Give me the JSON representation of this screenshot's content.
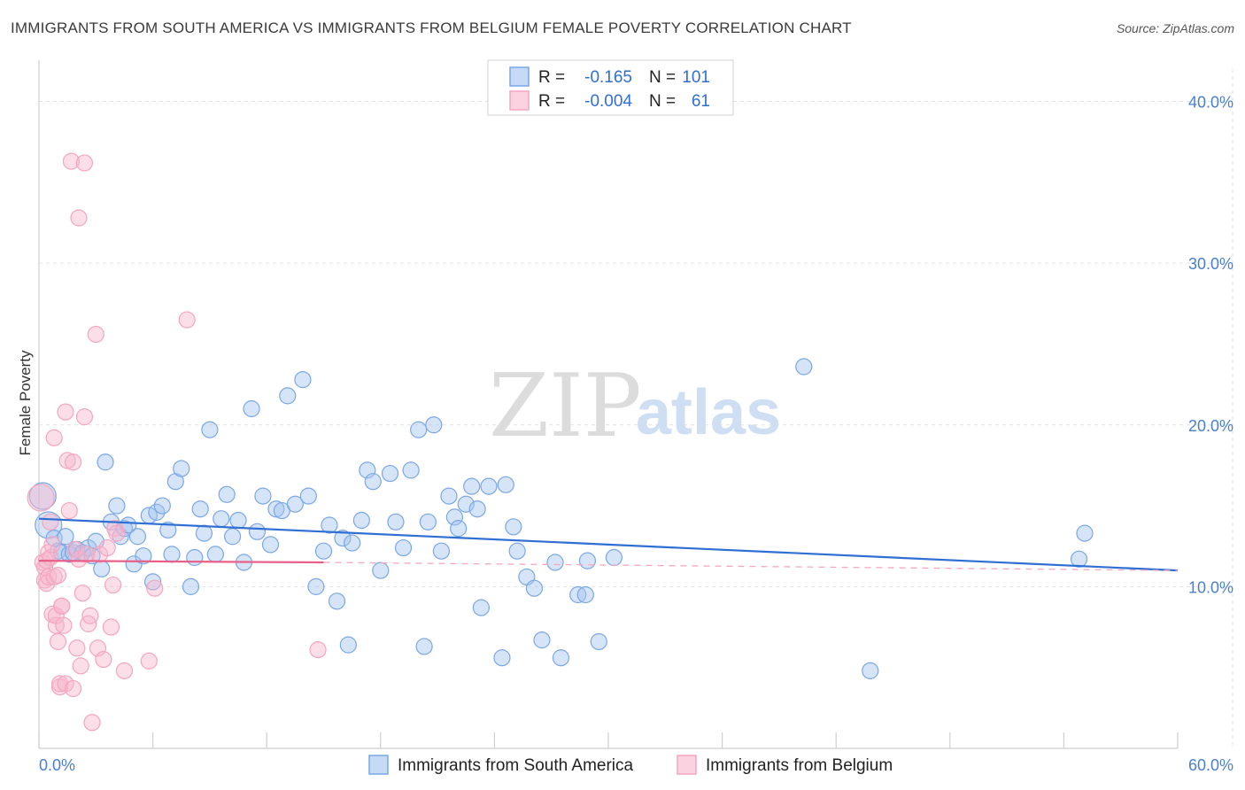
{
  "title": "IMMIGRANTS FROM SOUTH AMERICA VS IMMIGRANTS FROM BELGIUM FEMALE POVERTY CORRELATION CHART",
  "source": "Source: ZipAtlas.com",
  "watermark": {
    "part1": "ZIP",
    "part2": "atlas"
  },
  "legend": {
    "rows": [
      {
        "r_label": "R =",
        "r_value": "-0.165",
        "n_label": "N =",
        "n_value": "101"
      },
      {
        "r_label": "R =",
        "r_value": "-0.004",
        "n_label": "N =",
        "n_value": "61"
      }
    ]
  },
  "chart_data": {
    "type": "scatter",
    "title": "IMMIGRANTS FROM SOUTH AMERICA VS IMMIGRANTS FROM BELGIUM FEMALE POVERTY CORRELATION CHART",
    "ylabel": "Female Poverty",
    "xlabel": "",
    "xlim": [
      0,
      60
    ],
    "ylim": [
      0,
      42
    ],
    "x_tick_labels": [
      "0.0%",
      "60.0%"
    ],
    "y_ticks": [
      10,
      20,
      30,
      40
    ],
    "y_tick_labels": [
      "10.0%",
      "20.0%",
      "30.0%",
      "40.0%"
    ],
    "grid": "horizontal dashed",
    "legend_position": "top-center",
    "series": [
      {
        "name": "Immigrants from South America",
        "color": "#7aa7e6",
        "line_color": "#2f6fd3",
        "R": -0.165,
        "N": 101,
        "trend": {
          "x": [
            0,
            60
          ],
          "y": [
            14.2,
            11.0
          ]
        },
        "points": [
          [
            0.2,
            15.6
          ],
          [
            0.5,
            13.8
          ],
          [
            0.8,
            13.0
          ],
          [
            1.0,
            12.2
          ],
          [
            1.2,
            12.1
          ],
          [
            1.4,
            13.1
          ],
          [
            1.6,
            12.0
          ],
          [
            1.8,
            12.1
          ],
          [
            2.0,
            12.3
          ],
          [
            2.3,
            12.1
          ],
          [
            2.6,
            12.4
          ],
          [
            2.8,
            11.9
          ],
          [
            3.0,
            12.8
          ],
          [
            3.3,
            11.1
          ],
          [
            3.5,
            17.7
          ],
          [
            3.8,
            14.0
          ],
          [
            4.1,
            15.0
          ],
          [
            4.3,
            13.1
          ],
          [
            4.5,
            13.6
          ],
          [
            4.7,
            13.8
          ],
          [
            5.0,
            11.4
          ],
          [
            5.2,
            13.1
          ],
          [
            5.5,
            11.9
          ],
          [
            5.8,
            14.4
          ],
          [
            6.0,
            10.3
          ],
          [
            6.2,
            14.6
          ],
          [
            6.5,
            15.0
          ],
          [
            6.8,
            13.5
          ],
          [
            7.0,
            12.0
          ],
          [
            7.2,
            16.5
          ],
          [
            7.5,
            17.3
          ],
          [
            8.0,
            10.0
          ],
          [
            8.2,
            11.8
          ],
          [
            8.5,
            14.8
          ],
          [
            8.7,
            13.3
          ],
          [
            9.0,
            19.7
          ],
          [
            9.3,
            12.0
          ],
          [
            9.6,
            14.2
          ],
          [
            9.9,
            15.7
          ],
          [
            10.2,
            13.1
          ],
          [
            10.5,
            14.1
          ],
          [
            10.8,
            11.5
          ],
          [
            11.2,
            21.0
          ],
          [
            11.5,
            13.4
          ],
          [
            11.8,
            15.6
          ],
          [
            12.2,
            12.6
          ],
          [
            12.5,
            14.8
          ],
          [
            12.8,
            14.7
          ],
          [
            13.1,
            21.8
          ],
          [
            13.5,
            15.1
          ],
          [
            13.9,
            22.8
          ],
          [
            14.2,
            15.6
          ],
          [
            14.6,
            10.0
          ],
          [
            15.0,
            12.2
          ],
          [
            15.3,
            13.8
          ],
          [
            15.7,
            9.1
          ],
          [
            16.0,
            13.0
          ],
          [
            16.3,
            6.4
          ],
          [
            16.5,
            12.7
          ],
          [
            17.0,
            14.1
          ],
          [
            17.3,
            17.2
          ],
          [
            17.6,
            16.5
          ],
          [
            18.0,
            11.0
          ],
          [
            18.5,
            17.0
          ],
          [
            18.8,
            14.0
          ],
          [
            19.2,
            12.4
          ],
          [
            19.6,
            17.2
          ],
          [
            20.0,
            19.7
          ],
          [
            20.3,
            6.3
          ],
          [
            20.5,
            14.0
          ],
          [
            20.8,
            20.0
          ],
          [
            21.2,
            12.2
          ],
          [
            21.6,
            15.6
          ],
          [
            21.9,
            14.3
          ],
          [
            22.1,
            13.6
          ],
          [
            22.5,
            15.1
          ],
          [
            22.8,
            16.2
          ],
          [
            23.1,
            14.8
          ],
          [
            23.3,
            8.7
          ],
          [
            23.7,
            16.2
          ],
          [
            24.4,
            5.6
          ],
          [
            24.6,
            16.3
          ],
          [
            25.0,
            13.7
          ],
          [
            25.2,
            12.2
          ],
          [
            25.7,
            10.6
          ],
          [
            26.1,
            9.9
          ],
          [
            26.5,
            6.7
          ],
          [
            27.2,
            11.5
          ],
          [
            27.5,
            5.6
          ],
          [
            28.4,
            9.5
          ],
          [
            28.8,
            9.5
          ],
          [
            28.9,
            11.6
          ],
          [
            29.5,
            6.6
          ],
          [
            30.3,
            11.8
          ],
          [
            40.3,
            23.6
          ],
          [
            43.8,
            4.8
          ],
          [
            54.8,
            11.7
          ],
          [
            55.1,
            13.3
          ]
        ]
      },
      {
        "name": "Immigrants from Belgium",
        "color": "#f4a6bf",
        "line_color": "#e8608a",
        "R": -0.004,
        "N": 61,
        "trend": {
          "x": [
            0,
            15
          ],
          "y": [
            11.6,
            11.5
          ]
        },
        "dashed_extension": {
          "x": [
            15,
            60
          ],
          "y": [
            11.5,
            11.0
          ]
        },
        "points": [
          [
            0.1,
            15.5
          ],
          [
            0.2,
            11.5
          ],
          [
            0.3,
            10.4
          ],
          [
            0.3,
            11.2
          ],
          [
            0.4,
            10.2
          ],
          [
            0.4,
            11.6
          ],
          [
            0.5,
            12.1
          ],
          [
            0.5,
            10.6
          ],
          [
            0.6,
            11.8
          ],
          [
            0.6,
            14.0
          ],
          [
            0.7,
            8.3
          ],
          [
            0.7,
            12.6
          ],
          [
            0.8,
            19.2
          ],
          [
            0.8,
            10.6
          ],
          [
            0.9,
            7.6
          ],
          [
            0.9,
            8.2
          ],
          [
            1.0,
            6.6
          ],
          [
            1.0,
            10.7
          ],
          [
            1.1,
            3.8
          ],
          [
            1.1,
            4.0
          ],
          [
            1.2,
            8.8
          ],
          [
            1.2,
            8.8
          ],
          [
            1.3,
            7.6
          ],
          [
            1.4,
            20.8
          ],
          [
            1.4,
            4.0
          ],
          [
            1.5,
            17.8
          ],
          [
            1.6,
            14.7
          ],
          [
            1.7,
            36.3
          ],
          [
            1.8,
            17.7
          ],
          [
            1.8,
            3.7
          ],
          [
            1.9,
            12.3
          ],
          [
            2.0,
            6.2
          ],
          [
            2.1,
            32.8
          ],
          [
            2.1,
            11.7
          ],
          [
            2.2,
            5.1
          ],
          [
            2.3,
            9.6
          ],
          [
            2.4,
            36.2
          ],
          [
            2.4,
            20.5
          ],
          [
            2.5,
            12.0
          ],
          [
            2.6,
            7.7
          ],
          [
            2.7,
            8.2
          ],
          [
            2.8,
            1.6
          ],
          [
            3.0,
            25.6
          ],
          [
            3.1,
            6.2
          ],
          [
            3.2,
            12.0
          ],
          [
            3.4,
            5.5
          ],
          [
            3.6,
            12.4
          ],
          [
            3.8,
            7.5
          ],
          [
            3.9,
            10.1
          ],
          [
            4.0,
            13.6
          ],
          [
            4.1,
            13.3
          ],
          [
            4.5,
            4.8
          ],
          [
            5.8,
            5.4
          ],
          [
            6.1,
            9.9
          ],
          [
            7.8,
            26.5
          ],
          [
            14.7,
            6.1
          ]
        ]
      }
    ]
  },
  "bottom_legend": [
    "Immigrants from South America",
    "Immigrants from Belgium"
  ]
}
